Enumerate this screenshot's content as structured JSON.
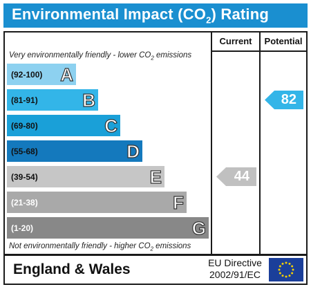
{
  "title": {
    "main": "Environmental Impact (CO",
    "sub": "2",
    "end": ") Rating"
  },
  "columns": {
    "current": "Current",
    "potential": "Potential"
  },
  "captions": {
    "top_pre": "Very environmentally friendly - lower CO",
    "top_sub": "2",
    "top_post": " emissions",
    "bottom_pre": "Not environmentally friendly - higher CO",
    "bottom_sub": "2",
    "bottom_post": " emissions"
  },
  "bands": [
    {
      "range": "(92-100)",
      "letter": "A",
      "color": "#8dd1f0",
      "text_color": "#111111"
    },
    {
      "range": "(81-91)",
      "letter": "B",
      "color": "#33b5e8",
      "text_color": "#111111"
    },
    {
      "range": "(69-80)",
      "letter": "C",
      "color": "#1aa0d8",
      "text_color": "#111111"
    },
    {
      "range": "(55-68)",
      "letter": "D",
      "color": "#1479bd",
      "text_color": "#111111"
    },
    {
      "range": "(39-54)",
      "letter": "E",
      "color": "#c6c6c6",
      "text_color": "#111111"
    },
    {
      "range": "(21-38)",
      "letter": "F",
      "color": "#a9a9a9",
      "text_color": "#ffffff"
    },
    {
      "range": "(1-20)",
      "letter": "G",
      "color": "#888888",
      "text_color": "#ffffff"
    }
  ],
  "current_rating": {
    "value": "44",
    "band": "E",
    "color": "#c0c0c0"
  },
  "potential_rating": {
    "value": "82",
    "band": "B",
    "color": "#33b5e8"
  },
  "footer": {
    "region": "England & Wales",
    "directive_line1": "EU Directive",
    "directive_line2": "2002/91/EC",
    "flag_icon": "eu-flag-icon"
  }
}
